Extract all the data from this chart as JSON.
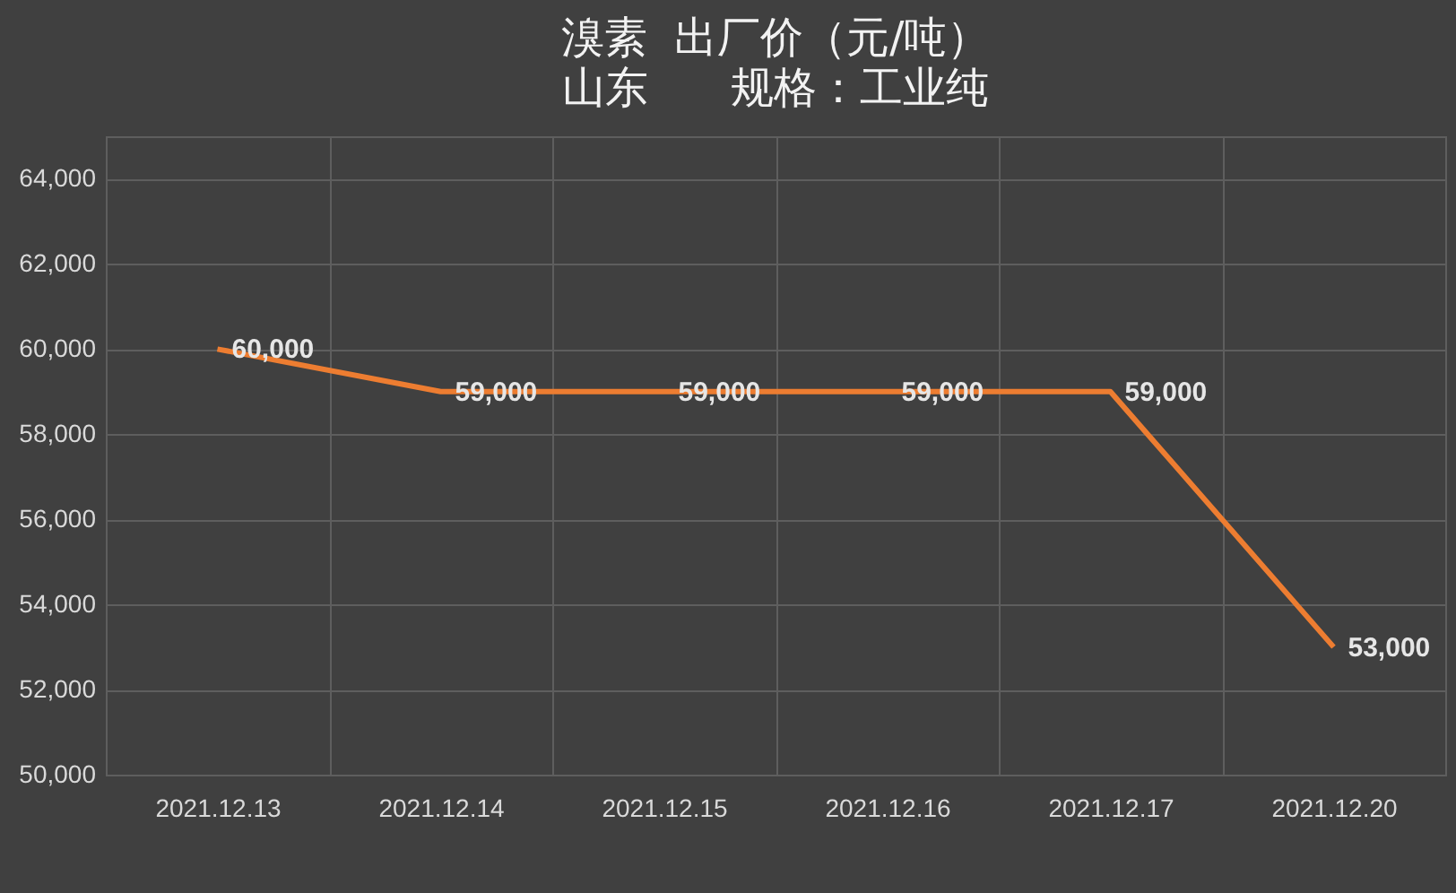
{
  "chart_data": {
    "type": "line",
    "title": "溴素  出厂价（元/吨）",
    "subtitle": "山东      规格：工业纯",
    "categories": [
      "2021.12.13",
      "2021.12.14",
      "2021.12.15",
      "2021.12.16",
      "2021.12.17",
      "2021.12.20"
    ],
    "series": [
      {
        "color": "#ed7d31",
        "values": [
          60000,
          59000,
          59000,
          59000,
          59000,
          53000
        ],
        "value_labels": [
          "60,000",
          "59,000",
          "59,000",
          "59,000",
          "59,000",
          "53,000"
        ]
      }
    ],
    "ylim": [
      50000,
      65000
    ],
    "yticks": [
      {
        "value": 50000,
        "label": "50,000"
      },
      {
        "value": 52000,
        "label": "52,000"
      },
      {
        "value": 54000,
        "label": "54,000"
      },
      {
        "value": 56000,
        "label": "56,000"
      },
      {
        "value": 58000,
        "label": "58,000"
      },
      {
        "value": 60000,
        "label": "60,000"
      },
      {
        "value": 62000,
        "label": "62,000"
      },
      {
        "value": 64000,
        "label": "64,000"
      }
    ],
    "grid": true,
    "marker": "none",
    "line_style": "solid",
    "legend": false
  }
}
